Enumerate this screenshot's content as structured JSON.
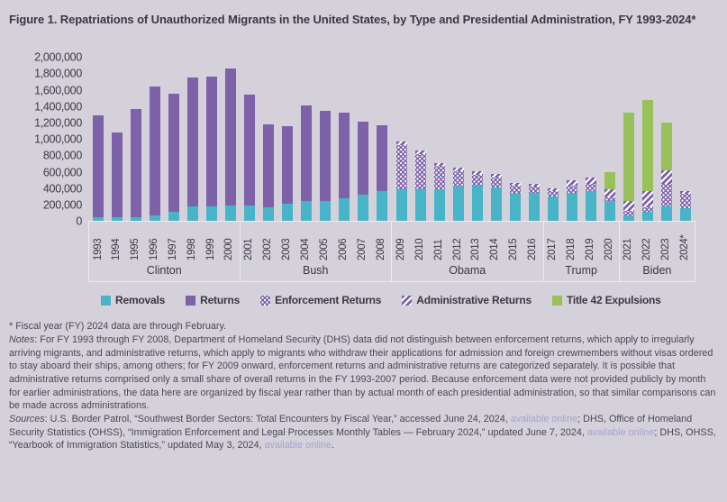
{
  "title": "Figure 1. Repatriations of Unauthorized Migrants in the United States, by Type and Presidential Administration, FY 1993-2024*",
  "colors": {
    "background": "#d4d1da",
    "removals": "#47b5c7",
    "returns": "#7d61a9",
    "title42": "#98c159",
    "text_dark": "#3a3644",
    "link": "#a9a2d1"
  },
  "chart_data": {
    "type": "bar",
    "stacked": true,
    "grid": false,
    "legend_position": "bottom",
    "ylim": [
      0,
      2000000
    ],
    "ytick_interval": 200000,
    "ytick_labels": [
      "2,000,000",
      "1,800,000",
      "1,600,000",
      "1,400,000",
      "1,200,000",
      "1,000,000",
      "800,000",
      "600,000",
      "400,000",
      "200,000",
      "0"
    ],
    "series_names": [
      "Removals",
      "Returns",
      "Enforcement Returns",
      "Administrative Returns",
      "Title 42 Expulsions"
    ],
    "groups": [
      {
        "president": "Clinton",
        "bars": [
          {
            "year": "1993",
            "removals": 43000,
            "returns": 1243000,
            "enforcement_returns": 0,
            "administrative_returns": 0,
            "title42": 0
          },
          {
            "year": "1994",
            "removals": 46000,
            "returns": 1029000,
            "enforcement_returns": 0,
            "administrative_returns": 0,
            "title42": 0
          },
          {
            "year": "1995",
            "removals": 51000,
            "returns": 1314000,
            "enforcement_returns": 0,
            "administrative_returns": 0,
            "title42": 0
          },
          {
            "year": "1996",
            "removals": 70000,
            "returns": 1573000,
            "enforcement_returns": 0,
            "administrative_returns": 0,
            "title42": 0
          },
          {
            "year": "1997",
            "removals": 114000,
            "returns": 1441000,
            "enforcement_returns": 0,
            "administrative_returns": 0,
            "title42": 0
          },
          {
            "year": "1998",
            "removals": 175000,
            "returns": 1570000,
            "enforcement_returns": 0,
            "administrative_returns": 0,
            "title42": 0
          },
          {
            "year": "1999",
            "removals": 183000,
            "returns": 1575000,
            "enforcement_returns": 0,
            "administrative_returns": 0,
            "title42": 0
          },
          {
            "year": "2000",
            "removals": 188000,
            "returns": 1676000,
            "enforcement_returns": 0,
            "administrative_returns": 0,
            "title42": 0
          }
        ]
      },
      {
        "president": "Bush",
        "bars": [
          {
            "year": "2001",
            "removals": 189000,
            "returns": 1349000,
            "enforcement_returns": 0,
            "administrative_returns": 0,
            "title42": 0
          },
          {
            "year": "2002",
            "removals": 165000,
            "returns": 1012000,
            "enforcement_returns": 0,
            "administrative_returns": 0,
            "title42": 0
          },
          {
            "year": "2003",
            "removals": 211000,
            "returns": 945000,
            "enforcement_returns": 0,
            "administrative_returns": 0,
            "title42": 0
          },
          {
            "year": "2004",
            "removals": 241000,
            "returns": 1167000,
            "enforcement_returns": 0,
            "administrative_returns": 0,
            "title42": 0
          },
          {
            "year": "2005",
            "removals": 246000,
            "returns": 1097000,
            "enforcement_returns": 0,
            "administrative_returns": 0,
            "title42": 0
          },
          {
            "year": "2006",
            "removals": 281000,
            "returns": 1043000,
            "enforcement_returns": 0,
            "administrative_returns": 0,
            "title42": 0
          },
          {
            "year": "2007",
            "removals": 319000,
            "returns": 891000,
            "enforcement_returns": 0,
            "administrative_returns": 0,
            "title42": 0
          },
          {
            "year": "2008",
            "removals": 360000,
            "returns": 811000,
            "enforcement_returns": 0,
            "administrative_returns": 0,
            "title42": 0
          }
        ]
      },
      {
        "president": "Obama",
        "bars": [
          {
            "year": "2009",
            "removals": 391000,
            "returns": 0,
            "enforcement_returns": 535000,
            "administrative_returns": 48000,
            "title42": 0
          },
          {
            "year": "2010",
            "removals": 382000,
            "returns": 0,
            "enforcement_returns": 429000,
            "administrative_returns": 45000,
            "title42": 0
          },
          {
            "year": "2011",
            "removals": 386000,
            "returns": 0,
            "enforcement_returns": 283000,
            "administrative_returns": 39000,
            "title42": 0
          },
          {
            "year": "2012",
            "removals": 416000,
            "returns": 0,
            "enforcement_returns": 192000,
            "administrative_returns": 38000,
            "title42": 0
          },
          {
            "year": "2013",
            "removals": 432000,
            "returns": 0,
            "enforcement_returns": 135000,
            "administrative_returns": 43000,
            "title42": 0
          },
          {
            "year": "2014",
            "removals": 406000,
            "returns": 0,
            "enforcement_returns": 120000,
            "administrative_returns": 43000,
            "title42": 0
          },
          {
            "year": "2015",
            "removals": 334000,
            "returns": 0,
            "enforcement_returns": 95000,
            "administrative_returns": 34000,
            "title42": 0
          },
          {
            "year": "2016",
            "removals": 344000,
            "returns": 0,
            "enforcement_returns": 76000,
            "administrative_returns": 30000,
            "title42": 0
          }
        ]
      },
      {
        "president": "Trump",
        "bars": [
          {
            "year": "2017",
            "removals": 295000,
            "returns": 0,
            "enforcement_returns": 70000,
            "administrative_returns": 31000,
            "title42": 0
          },
          {
            "year": "2018",
            "removals": 337000,
            "returns": 0,
            "enforcement_returns": 92000,
            "administrative_returns": 68000,
            "title42": 0
          },
          {
            "year": "2019",
            "removals": 360000,
            "returns": 0,
            "enforcement_returns": 90000,
            "administrative_returns": 81000,
            "title42": 0
          },
          {
            "year": "2020",
            "removals": 240000,
            "returns": 0,
            "enforcement_returns": 45000,
            "administrative_returns": 103000,
            "title42": 210000
          }
        ]
      },
      {
        "president": "Biden",
        "bars": [
          {
            "year": "2021",
            "removals": 65000,
            "returns": 0,
            "enforcement_returns": 56000,
            "administrative_returns": 125000,
            "title42": 1075000
          },
          {
            "year": "2022",
            "removals": 110000,
            "returns": 0,
            "enforcement_returns": 55000,
            "administrative_returns": 195000,
            "title42": 1110000
          },
          {
            "year": "2023",
            "removals": 183000,
            "returns": 0,
            "enforcement_returns": 275000,
            "administrative_returns": 165000,
            "title42": 580000
          },
          {
            "year": "2024*",
            "removals": 155000,
            "returns": 0,
            "enforcement_returns": 175000,
            "administrative_returns": 30000,
            "title42": 0
          }
        ]
      }
    ]
  },
  "legend": {
    "items": [
      {
        "label": "Removals",
        "swatch": "seg-removals"
      },
      {
        "label": "Returns",
        "swatch": "seg-returns"
      },
      {
        "label": "Enforcement Returns",
        "swatch": "seg-enf"
      },
      {
        "label": "Administrative Returns",
        "swatch": "seg-adm"
      },
      {
        "label": "Title 42 Expulsions",
        "swatch": "seg-t42"
      }
    ]
  },
  "footnotes": {
    "paragraphs": [
      [
        {
          "text": "* Fiscal year (FY) 2024 data are through February.",
          "style": "normal"
        }
      ],
      [
        {
          "text": "Notes",
          "style": "italic"
        },
        {
          "text": ": For FY 1993 through FY 2008, Department of Homeland Security (DHS) data did not distinguish between enforcement returns, which apply to irregularly arriving migrants, and administrative returns, which apply to migrants who withdraw their applications for admission and foreign crewmembers without visas ordered to stay aboard their ships, among others; for FY 2009 onward, enforcement returns and administrative returns are categorized separately. It is possible that administrative returns comprised only a small share of overall returns in the FY 1993-2007 period. Because enforcement data were not provided publicly by month for earlier administrations, the data here are organized by fiscal year rather than by actual month of each presidential administration, so that similar comparisons can be made across administrations.",
          "style": "normal"
        }
      ],
      [
        {
          "text": "Sources",
          "style": "italic"
        },
        {
          "text": ": U.S. Border Patrol, “Southwest Border Sectors: Total Encounters by Fiscal Year,” accessed June 24, 2024, ",
          "style": "normal"
        },
        {
          "text": "available online",
          "style": "link"
        },
        {
          "text": "; DHS, Office of Homeland Security Statistics (OHSS), “Immigration Enforcement and Legal Processes Monthly Tables — February 2024,” updated June 7, 2024, ",
          "style": "normal"
        },
        {
          "text": "available online",
          "style": "link"
        },
        {
          "text": "; DHS, OHSS, “Yearbook of Immigration Statistics,” updated May 3, 2024, ",
          "style": "normal"
        },
        {
          "text": "available online",
          "style": "link"
        },
        {
          "text": ".",
          "style": "normal"
        }
      ]
    ]
  }
}
